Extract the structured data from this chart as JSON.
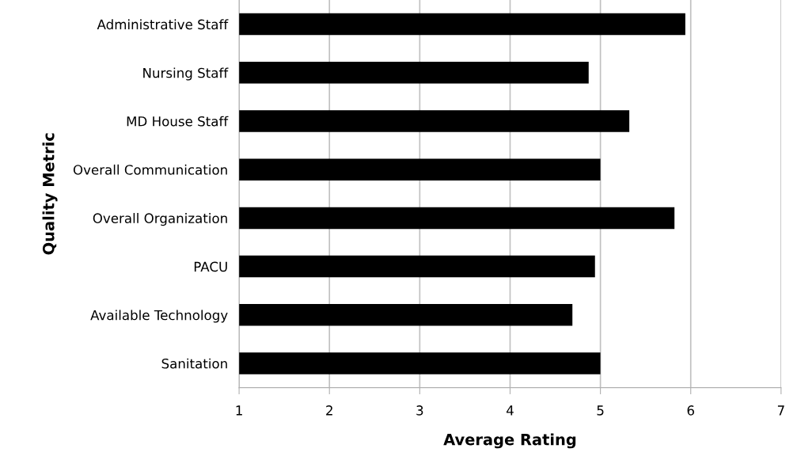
{
  "chart_data": {
    "type": "bar",
    "orientation": "horizontal",
    "xlabel": "Average Rating",
    "ylabel": "Quality Metric",
    "categories": [
      "Administrative Staff",
      "Nursing Staff",
      "MD House Staff",
      "Overall Communication",
      "Overall Organization",
      "PACU",
      "Available Technology",
      "Sanitation"
    ],
    "values": [
      5.94,
      4.87,
      5.32,
      5.0,
      5.82,
      4.94,
      4.69,
      5.0
    ],
    "color": "#000000",
    "xlim": [
      1,
      7
    ],
    "xticks": [
      1,
      2,
      3,
      4,
      5,
      6,
      7
    ],
    "grid": "x",
    "legend": false
  }
}
